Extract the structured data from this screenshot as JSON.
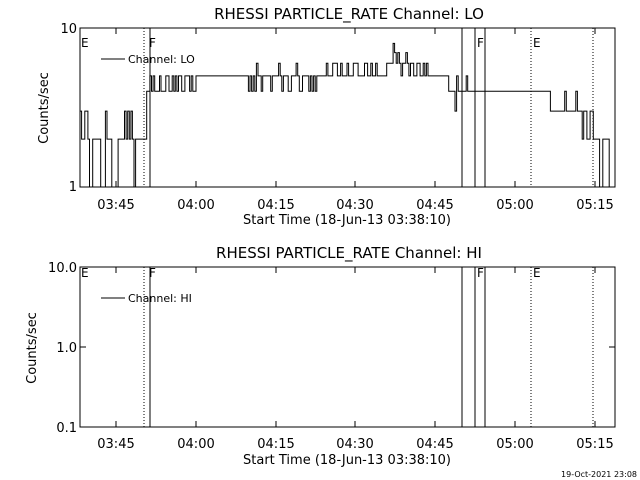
{
  "footer_timestamp": "19-Oct-2021 23:08",
  "chart_data": [
    {
      "type": "line",
      "title": "RHESSI PARTICLE_RATE Channel: LO",
      "xlabel": "Start Time (18-Jun-13 03:38:10)",
      "ylabel": "Counts/sec",
      "y_scale": "log",
      "ylim": [
        1,
        10
      ],
      "y_ticks": [
        "10",
        "1"
      ],
      "xlim_minutes_after_03_38_10": [
        0,
        101
      ],
      "x_ticks": [
        "03:45",
        "04:00",
        "04:15",
        "04:30",
        "04:45",
        "05:00",
        "05:15"
      ],
      "legend": {
        "position": "top-left",
        "entries": [
          "Channel: LO"
        ]
      },
      "flag_labels": [
        "E",
        "F",
        "F",
        "E"
      ],
      "series": [
        {
          "name": "Channel: LO",
          "t_minutes": [
            0,
            0.3,
            0.6,
            0.9,
            1.2,
            1.5,
            1.8,
            2.1,
            2.4,
            2.7,
            3,
            3.3,
            3.6,
            3.9,
            4.2,
            4.5,
            4.8,
            5.1,
            5.4,
            5.7,
            6,
            6.3,
            6.6,
            6.9,
            7.2,
            7.5,
            7.8,
            8.1,
            8.4,
            8.7,
            9,
            9.3,
            9.6,
            9.9,
            10.2,
            10.5,
            10.8,
            11.1,
            11.4,
            11.7,
            12,
            12.3,
            12.6,
            12.9,
            13.2,
            13.5,
            13.8,
            14.1,
            14.4,
            14.7,
            15,
            15.3,
            15.6,
            15.9,
            16.2,
            16.5,
            16.8,
            17.1,
            17.4,
            17.7,
            18,
            18.3,
            18.6,
            18.9,
            19.2,
            19.5,
            19.8,
            20.1,
            20.4,
            20.7,
            21,
            21.3,
            21.6,
            21.9,
            22.2,
            22.5,
            22.8,
            23.1,
            23.4,
            23.7,
            24,
            24.3,
            24.6,
            24.9,
            25.2,
            25.5,
            25.8,
            26.1,
            26.4,
            26.7,
            27,
            27.3,
            27.6,
            27.9,
            28.2,
            28.5,
            28.8,
            29.1,
            29.4,
            29.7,
            30,
            30.3,
            30.6,
            30.9,
            31.2,
            31.5,
            31.8,
            32.1,
            32.4,
            32.7,
            33,
            33.3,
            33.6,
            33.9,
            34.2,
            34.5,
            34.8,
            35.1,
            35.4,
            35.7,
            36,
            36.3,
            36.6,
            36.9,
            37.2,
            37.5,
            37.8,
            38.1,
            38.4,
            38.7,
            39,
            39.3,
            39.6,
            39.9,
            40.2,
            40.5,
            40.8,
            41.1,
            41.4,
            41.7,
            42,
            42.3,
            42.6,
            42.9,
            43.2,
            43.5,
            43.8,
            44.1,
            44.4,
            44.7,
            45,
            45.3,
            45.6,
            45.9,
            46.2,
            46.5,
            46.8,
            47.1,
            47.4,
            47.7,
            48,
            48.3,
            48.6,
            48.9,
            49.2,
            49.5,
            49.8,
            50.1,
            50.4,
            50.7,
            51,
            51.3,
            51.6,
            51.9,
            52.2,
            52.5,
            52.8,
            53.1,
            53.4,
            53.7,
            54,
            54.3,
            54.6,
            54.9,
            55.2,
            55.5,
            55.8,
            56.1,
            56.4,
            56.7,
            57,
            57.3,
            57.6,
            57.9,
            58.2,
            58.5,
            58.8,
            59.1,
            59.4,
            59.7,
            60,
            60.3,
            60.6,
            60.9,
            61.2,
            61.5,
            61.8,
            62.1,
            62.4,
            62.7,
            63,
            63.3,
            63.6,
            63.9,
            64.2,
            64.5,
            64.8,
            65.1,
            65.4,
            65.7,
            66,
            66.3,
            66.6,
            66.9,
            67.2,
            67.5,
            67.8,
            68.1,
            68.4,
            68.7,
            69,
            69.3,
            69.6,
            69.9,
            70.2,
            70.5,
            70.8,
            71.1,
            71.4,
            71.7,
            72,
            72.3,
            72.6,
            72.9,
            73.2,
            73.5,
            73.8,
            74.1,
            74.4,
            74.7,
            75,
            75.3,
            75.6,
            75.9,
            76.2,
            76.5,
            76.8,
            77.1,
            77.4,
            77.7,
            78,
            78.3,
            78.6,
            78.9,
            79.2,
            79.5,
            79.8,
            80.1,
            80.4,
            80.7,
            81,
            81.3,
            81.6,
            81.9,
            82.2,
            82.5,
            82.8,
            83.1,
            83.4,
            83.7,
            84,
            84.3,
            84.6,
            84.9,
            85.2,
            85.5,
            85.8,
            86.1,
            86.4,
            86.7,
            87,
            87.3,
            87.6,
            87.9,
            88.2,
            88.5,
            88.8,
            89.1,
            89.4,
            89.7,
            90,
            90.3,
            90.6,
            90.9,
            91.2,
            91.5,
            91.8,
            92.1,
            92.4,
            92.7,
            93,
            93.3,
            93.6,
            93.9,
            94.2,
            94.5,
            94.8,
            95.1,
            95.4,
            95.7,
            96,
            96.3,
            96.6,
            96.9,
            97.2,
            97.5,
            97.8,
            98.1,
            98.4,
            98.7,
            99,
            99.3,
            99.6,
            99.9
          ],
          "counts_per_sec": [
            3,
            2,
            2,
            3,
            3,
            2,
            1,
            1,
            2,
            2,
            2,
            2,
            2,
            1,
            1,
            1,
            3,
            2,
            2,
            2,
            1,
            1,
            1,
            1,
            2,
            2,
            2,
            2,
            3,
            2,
            3,
            2,
            3,
            2,
            1,
            2,
            2,
            2,
            2,
            2,
            2,
            2,
            4,
            4,
            5,
            4,
            5,
            4,
            4,
            4,
            5,
            4,
            4,
            4,
            5,
            5,
            4,
            4,
            5,
            4,
            5,
            4,
            5,
            5,
            4,
            4,
            5,
            5,
            5,
            4,
            5,
            4,
            4,
            5,
            5,
            5,
            5,
            5,
            5,
            5,
            5,
            5,
            5,
            5,
            5,
            5,
            5,
            5,
            5,
            5,
            5,
            5,
            5,
            5,
            5,
            5,
            5,
            5,
            5,
            5,
            5,
            5,
            5,
            5,
            5,
            5,
            4,
            5,
            4,
            5,
            4,
            6,
            5,
            5,
            4,
            5,
            5,
            5,
            5,
            5,
            4,
            5,
            5,
            5,
            5,
            6,
            5,
            4,
            5,
            5,
            5,
            4,
            4,
            5,
            5,
            5,
            6,
            5,
            4,
            4,
            5,
            5,
            5,
            5,
            4,
            5,
            4,
            5,
            4,
            5,
            5,
            5,
            5,
            5,
            5,
            6,
            5,
            5,
            5,
            6,
            6,
            6,
            5,
            5,
            6,
            5,
            5,
            5,
            6,
            5,
            5,
            5,
            6,
            6,
            6,
            5,
            5,
            5,
            5,
            6,
            6,
            5,
            5,
            6,
            5,
            5,
            6,
            5,
            5,
            5,
            5,
            5,
            5,
            6,
            6,
            6,
            6,
            8,
            7,
            6,
            7,
            6,
            5,
            6,
            6,
            7,
            6,
            5,
            6,
            6,
            5,
            5,
            6,
            6,
            5,
            5,
            6,
            5,
            6,
            5,
            5,
            5,
            5,
            5,
            5,
            5,
            5,
            5,
            5,
            5,
            5,
            5,
            4,
            4,
            4,
            4,
            3,
            5,
            4,
            4,
            4,
            4,
            4,
            5,
            4,
            4,
            4,
            4,
            4,
            4,
            4,
            4,
            4,
            4,
            4,
            4,
            4,
            4,
            4,
            4,
            4,
            4,
            4,
            4,
            4,
            4,
            4,
            4,
            4,
            4,
            4,
            4,
            4,
            4,
            4,
            4,
            4,
            4,
            4,
            4,
            4,
            4,
            4,
            4,
            4,
            4,
            4,
            4,
            4,
            4,
            4,
            4,
            4,
            4,
            4,
            4,
            3,
            3,
            3,
            3,
            3,
            3,
            3,
            3,
            3,
            4,
            3,
            3,
            3,
            3,
            3,
            3,
            4,
            3,
            3,
            3,
            2,
            3,
            3,
            2,
            2,
            3,
            3,
            2,
            2,
            2,
            2,
            1,
            1,
            2,
            2,
            2,
            2,
            1,
            1,
            1,
            2,
            2,
            2,
            2,
            2,
            2,
            2,
            2,
            2
          ]
        }
      ]
    },
    {
      "type": "line",
      "title": "RHESSI PARTICLE_RATE Channel: HI",
      "xlabel": "Start Time (18-Jun-13 03:38:10)",
      "ylabel": "Counts/sec",
      "y_scale": "log",
      "ylim": [
        0.1,
        10
      ],
      "y_ticks": [
        "10.0",
        "1.0",
        "0.1"
      ],
      "xlim_minutes_after_03_38_10": [
        0,
        101
      ],
      "x_ticks": [
        "03:45",
        "04:00",
        "04:15",
        "04:30",
        "04:45",
        "05:00",
        "05:15"
      ],
      "legend": {
        "position": "top-left",
        "entries": [
          "Channel: HI"
        ]
      },
      "flag_labels": [
        "E",
        "F",
        "F",
        "E"
      ],
      "series": [
        {
          "name": "Channel: HI",
          "t_minutes": [],
          "counts_per_sec": []
        }
      ]
    }
  ]
}
